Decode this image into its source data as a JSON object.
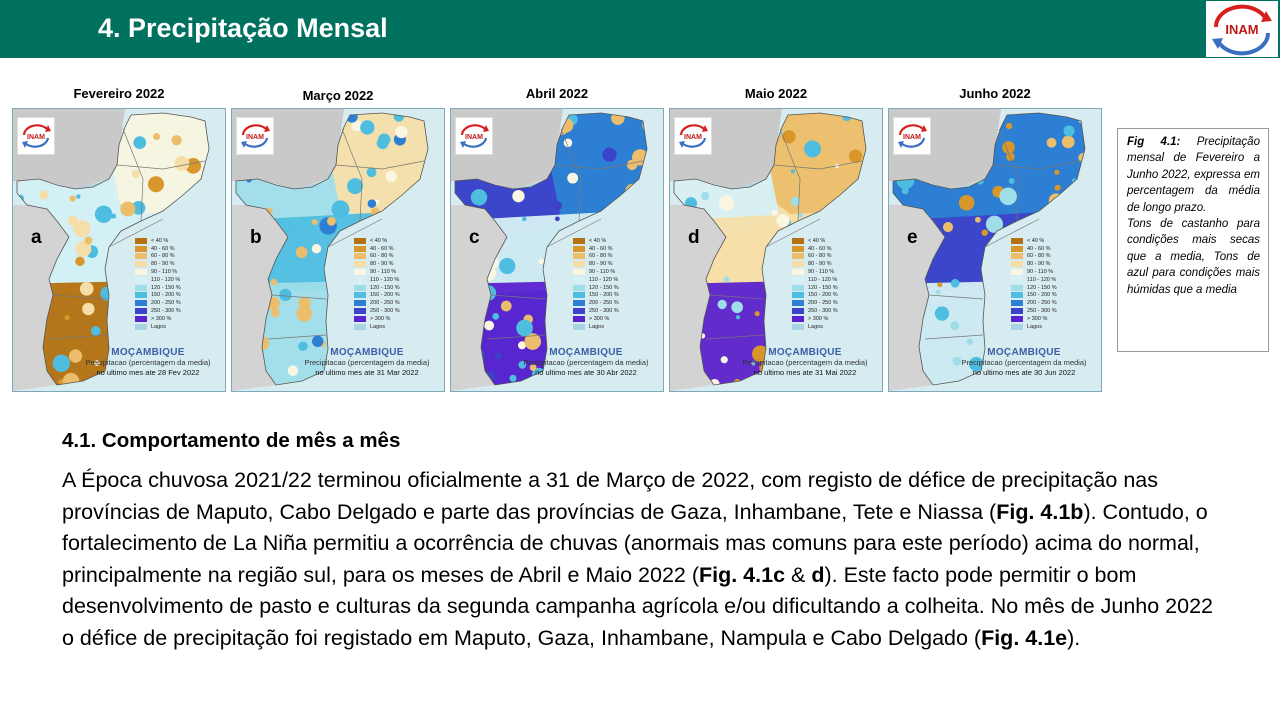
{
  "header": {
    "title": "4. Precipitação Mensal",
    "logo_text": "INAM",
    "color": "#00705f"
  },
  "maps": [
    {
      "month": "Fevereiro 2022",
      "letter": "a",
      "country": "MOÇAMBIQUE",
      "subtitle": "Precipitacao (percentagem da media)",
      "date_line": "no ultimo mes ate 28 Fev 2022",
      "pattern": "dry_south"
    },
    {
      "month": "Março 2022",
      "letter": "b",
      "country": "MOÇAMBIQUE",
      "subtitle": "Precipitacao (percentagem da media)",
      "date_line": "no ultimo mes ate 31 Mar 2022",
      "pattern": "mixed"
    },
    {
      "month": "Abril 2022",
      "letter": "c",
      "country": "MOÇAMBIQUE",
      "subtitle": "Precipitacao (percentagem da media)",
      "date_line": "no ultimo mes ate 30 Abr 2022",
      "pattern": "wet_south"
    },
    {
      "month": "Maio 2022",
      "letter": "d",
      "country": "MOÇAMBIQUE",
      "subtitle": "Precipitacao (percentagem da media)",
      "date_line": "no ultimo mes ate 31 Mai 2022",
      "pattern": "wet_south_dry_north"
    },
    {
      "month": "Junho 2022",
      "letter": "e",
      "country": "MOÇAMBIQUE",
      "subtitle": "Precipitacao (percentagem da media)",
      "date_line": "no ultimo mes ate 30 Jun 2022",
      "pattern": "wet_central"
    }
  ],
  "mini_logo_text": "INAM",
  "legend": [
    {
      "label": "< 40 %",
      "color": "#b5700f"
    },
    {
      "label": "40 - 60 %",
      "color": "#d9962a"
    },
    {
      "label": "60 - 80 %",
      "color": "#ecbe6b"
    },
    {
      "label": "80 - 90 %",
      "color": "#f6dea8"
    },
    {
      "label": "90 - 110 %",
      "color": "#fbf6e2"
    },
    {
      "label": "110 - 120 %",
      "color": "#d6f0f4"
    },
    {
      "label": "120 - 150 %",
      "color": "#9fdde9"
    },
    {
      "label": "150 - 200 %",
      "color": "#4fbde0"
    },
    {
      "label": "200 - 250 %",
      "color": "#2c7fd2"
    },
    {
      "label": "250 - 300 %",
      "color": "#3d43c9"
    },
    {
      "label": "> 300 %",
      "color": "#5a22cf"
    },
    {
      "label": "Lagos",
      "color": "#aad3e6"
    }
  ],
  "caption_box": {
    "fig_label": "Fig 4.1:",
    "text": "Precipitação mensal de Fevereiro a Junho 2022, expressa em percentagem da média de longo prazo.",
    "brown_note": "Tons de castanho para condições mais secas que a media,",
    "blue_note": "Tons de azul para condições mais húmidas que a media"
  },
  "section": {
    "title": "4.1. Comportamento de mês a mês",
    "p1": "A Época chuvosa 2021/22 terminou oficialmente a 31 de Março de 2022, com registo de défice de precipitação nas províncias de Maputo, Cabo Delgado e parte das províncias de Gaza, Inhambane, Tete e Niassa (",
    "ref1": "Fig. 4.1b",
    "p2": "). Contudo, o fortalecimento de La Niña permitiu a ocorrência de chuvas (anormais mas comuns para este período) acima do normal, principalmente na região sul, para os meses de Abril e Maio 2022 (",
    "ref2": "Fig. 4.1c",
    "p3": " & ",
    "ref3": "d",
    "p4": "). Este facto pode permitir o bom desenvolvimento de pasto e culturas da segunda campanha agrícola e/ou dificultando a colheita. No mês de Junho 2022 o défice de precipitação foi registado em Maputo, Gaza, Inhambane, Nampula e Cabo Delgado (",
    "ref4": "Fig. 4.1e",
    "p5": ")."
  }
}
